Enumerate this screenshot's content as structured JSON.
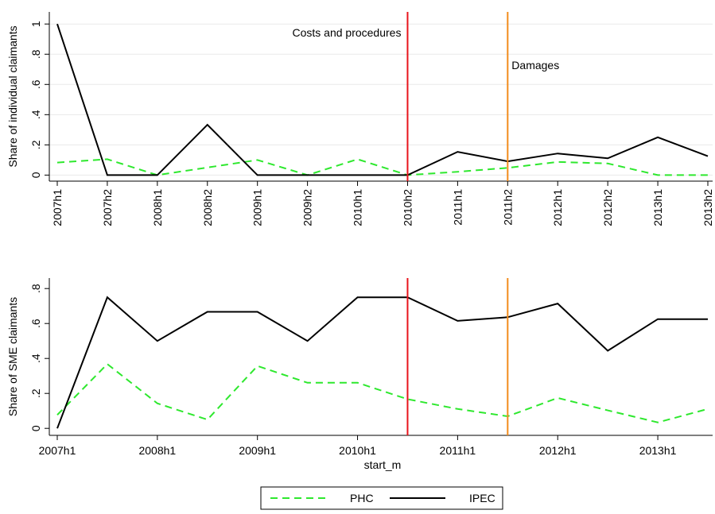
{
  "chart_data": [
    {
      "type": "line",
      "ylabel": "Share of individual claimants",
      "categories": [
        "2007h1",
        "2007h2",
        "2008h1",
        "2008h2",
        "2009h1",
        "2009h2",
        "2010h1",
        "2010h2",
        "2011h1",
        "2011h2",
        "2012h1",
        "2012h2",
        "2013h1",
        "2013h2"
      ],
      "series": [
        {
          "name": "PHC",
          "color": "#2ee82e",
          "style": "dash",
          "values": [
            0.083,
            0.105,
            0,
            0.05,
            0.1,
            0,
            0.105,
            0,
            0.022,
            0.048,
            0.087,
            0.077,
            0,
            0
          ]
        },
        {
          "name": "IPEC",
          "color": "#000000",
          "style": "solid",
          "values": [
            1,
            0,
            0,
            0.333,
            0,
            0,
            0,
            0,
            0.154,
            0.091,
            0.143,
            0.111,
            0.25,
            0.125
          ]
        }
      ],
      "ylim": [
        -0.04,
        1.08
      ],
      "yticks": [
        0,
        {
          "value": 0.2,
          "label": ".2"
        },
        {
          "value": 0.4,
          "label": ".4"
        },
        {
          "value": 0.6,
          "label": ".6"
        },
        {
          "value": 0.8,
          "label": ".8"
        },
        1
      ],
      "grid": true,
      "xlabels_rotated": true
    },
    {
      "type": "line",
      "ylabel": "Share of SME claimants",
      "xlabel": "start_m",
      "categories": [
        "2007h1",
        null,
        "2008h1",
        null,
        "2009h1",
        null,
        "2010h1",
        null,
        "2011h1",
        null,
        "2012h1",
        null,
        "2013h1",
        null
      ],
      "series": [
        {
          "name": "PHC",
          "color": "#2ee82e",
          "style": "dash",
          "values": [
            0.077,
            0.368,
            0.143,
            0.05,
            0.357,
            0.261,
            0.261,
            0.167,
            0.111,
            0.069,
            0.174,
            0.103,
            0.034,
            0.111
          ]
        },
        {
          "name": "IPEC",
          "color": "#000000",
          "style": "solid",
          "values": [
            0,
            0.75,
            0.5,
            0.667,
            0.667,
            0.5,
            0.75,
            0.75,
            0.615,
            0.636,
            0.714,
            0.444,
            0.625,
            0.625
          ]
        }
      ],
      "ylim": [
        -0.04,
        0.86
      ],
      "yticks": [
        0,
        {
          "value": 0.2,
          "label": ".2"
        },
        {
          "value": 0.4,
          "label": ".4"
        },
        {
          "value": 0.6,
          "label": ".6"
        },
        {
          "value": 0.8,
          "label": ".8"
        }
      ],
      "grid": false,
      "xlabels_rotated": false
    }
  ],
  "markers": [
    {
      "x": "2010h2",
      "color": "#e8141c",
      "label": "Costs and procedures"
    },
    {
      "x": "2011h2",
      "color": "#f28c1c",
      "label": "Damages"
    }
  ],
  "legend": "bottom"
}
